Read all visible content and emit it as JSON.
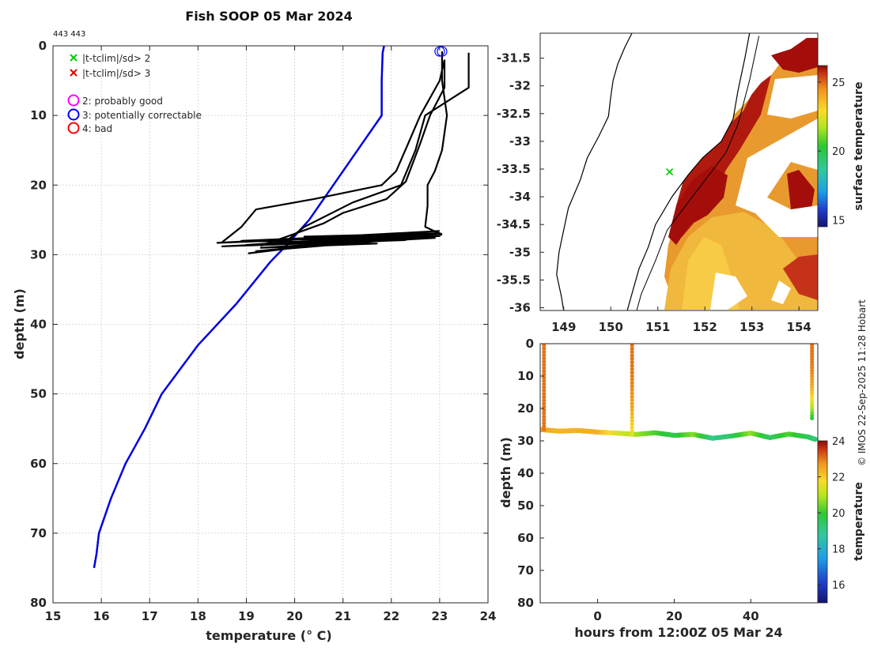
{
  "figure": {
    "title": "Fish SOOP 05 Mar 2024",
    "id_text": "443 443",
    "credit": "© IMOS 22-Sep-2025 11:28 Hobart"
  },
  "chart_data": [
    {
      "name": "profile",
      "type": "line",
      "xlabel": "temperature (° C)",
      "ylabel": "depth (m)",
      "xlim": [
        15,
        24
      ],
      "ylim": [
        0,
        80
      ],
      "y_reversed": true,
      "grid": true,
      "xticks": [
        15,
        16,
        17,
        18,
        19,
        20,
        21,
        22,
        23,
        24
      ],
      "yticks": [
        0,
        10,
        20,
        30,
        40,
        50,
        60,
        70,
        80
      ],
      "legend": {
        "position": "top-left",
        "entries": [
          {
            "label": "|t-tclim|/sd> 2",
            "marker": "x",
            "color": "#00cc00"
          },
          {
            "label": "|t-tclim|/sd> 3",
            "marker": "x",
            "color": "#e00000"
          },
          {
            "label": "2: probably good",
            "marker": "circle",
            "color": "#ff00ff"
          },
          {
            "label": "3: potentially correctable",
            "marker": "circle",
            "color": "#0000ff"
          },
          {
            "label": "4: bad",
            "marker": "circle",
            "color": "#ff0000"
          }
        ]
      },
      "series": [
        {
          "name": "climatology",
          "color": "#0000e0",
          "points": [
            [
              21.85,
              0
            ],
            [
              21.82,
              1
            ],
            [
              21.8,
              5
            ],
            [
              21.8,
              10
            ],
            [
              21.3,
              15
            ],
            [
              20.8,
              20
            ],
            [
              20.3,
              25
            ],
            [
              19.85,
              28.5
            ],
            [
              19.5,
              31
            ],
            [
              18.8,
              37
            ],
            [
              18.0,
              43
            ],
            [
              17.25,
              50
            ],
            [
              16.9,
              55
            ],
            [
              16.5,
              60
            ],
            [
              16.2,
              65
            ],
            [
              15.95,
              70
            ],
            [
              15.9,
              73
            ],
            [
              15.85,
              75
            ]
          ]
        },
        {
          "name": "profile-1",
          "color": "#000000",
          "points": [
            [
              23.05,
              0.8
            ],
            [
              23.05,
              5
            ],
            [
              23.15,
              10
            ],
            [
              23.05,
              15
            ],
            [
              22.9,
              18
            ],
            [
              22.75,
              20
            ],
            [
              22.75,
              23
            ],
            [
              22.7,
              26
            ],
            [
              22.95,
              26.8
            ],
            [
              23.05,
              27.2
            ]
          ]
        },
        {
          "name": "profile-2",
          "color": "#000000",
          "points": [
            [
              23.6,
              1
            ],
            [
              23.6,
              6
            ],
            [
              22.7,
              10
            ],
            [
              22.5,
              15
            ],
            [
              22.2,
              20
            ],
            [
              21.2,
              22.5
            ],
            [
              20.2,
              26
            ],
            [
              19.8,
              28.2
            ]
          ]
        },
        {
          "name": "profile-3",
          "color": "#000000",
          "points": [
            [
              23.1,
              2
            ],
            [
              23.1,
              6
            ],
            [
              22.8,
              10
            ],
            [
              22.6,
              14
            ],
            [
              22.3,
              19.5
            ],
            [
              21.9,
              22
            ],
            [
              21.0,
              24
            ],
            [
              20.6,
              25.5
            ],
            [
              19.8,
              27.5
            ],
            [
              19.3,
              28.7
            ]
          ]
        },
        {
          "name": "profile-4",
          "color": "#000000",
          "points": [
            [
              23.1,
              2
            ],
            [
              23.0,
              5
            ],
            [
              22.6,
              10
            ],
            [
              22.35,
              14
            ],
            [
              22.1,
              18
            ],
            [
              21.8,
              20
            ],
            [
              20.4,
              22
            ],
            [
              19.2,
              23.5
            ],
            [
              18.9,
              26
            ],
            [
              18.5,
              28.2
            ]
          ]
        },
        {
          "name": "bottom-scribble",
          "color": "#000000",
          "points": [
            [
              23.0,
              26.6
            ],
            [
              18.4,
              28.3
            ],
            [
              22.8,
              27.1
            ],
            [
              19.2,
              29.5
            ],
            [
              23.0,
              27.3
            ],
            [
              18.5,
              28.8
            ],
            [
              22.3,
              27.9
            ],
            [
              19.0,
              28.6
            ],
            [
              23.0,
              26.9
            ],
            [
              20.2,
              27.4
            ],
            [
              21.3,
              27.8
            ],
            [
              19.05,
              29.8
            ],
            [
              22.4,
              27.0
            ],
            [
              18.9,
              28.0
            ],
            [
              21.7,
              28.4
            ],
            [
              19.3,
              29.0
            ],
            [
              22.9,
              27.6
            ],
            [
              20.5,
              28.2
            ],
            [
              23.05,
              27.0
            ]
          ]
        }
      ],
      "markers": [
        {
          "type": "circle",
          "color": "#0000ff",
          "x": 23.0,
          "y": 0.8
        },
        {
          "type": "circle",
          "color": "#0000ff",
          "x": 23.05,
          "y": 0.8
        }
      ]
    },
    {
      "name": "sst-map",
      "type": "heatmap",
      "xlabel": "",
      "ylabel": "",
      "xlim": [
        148.5,
        154.4
      ],
      "ylim": [
        -36.05,
        -31.05
      ],
      "xticks": [
        149,
        150,
        151,
        152,
        153,
        154
      ],
      "yticks": [
        -31.5,
        -32,
        -32.5,
        -33,
        -33.5,
        -34,
        -34.5,
        -35,
        -35.5,
        -36
      ],
      "xticklabels": [
        "149",
        "150",
        "151",
        "152",
        "153",
        "154"
      ],
      "yticklabels": [
        "-31.5",
        "-32",
        "-32.5",
        "-33",
        "-33.5",
        "-34",
        "-34.5",
        "-35",
        "-35.5",
        "-36"
      ],
      "colorbar": {
        "label": "surface temperature",
        "range": [
          14.5,
          26.2
        ],
        "ticks": [
          15,
          20,
          25
        ]
      },
      "coastline": [
        [
          150.45,
          -31.05
        ],
        [
          150.3,
          -31.3
        ],
        [
          150.15,
          -31.6
        ],
        [
          150.05,
          -31.9
        ],
        [
          150.0,
          -32.2
        ],
        [
          149.95,
          -32.55
        ],
        [
          149.75,
          -32.9
        ],
        [
          149.5,
          -33.3
        ],
        [
          149.35,
          -33.7
        ],
        [
          149.1,
          -34.2
        ],
        [
          149.0,
          -34.6
        ],
        [
          148.9,
          -35.0
        ],
        [
          148.85,
          -35.4
        ],
        [
          148.95,
          -35.8
        ],
        [
          149.0,
          -36.05
        ]
      ],
      "inner_coastline": [
        [
          152.95,
          -31.05
        ],
        [
          152.85,
          -31.5
        ],
        [
          152.7,
          -32.1
        ],
        [
          152.6,
          -32.6
        ],
        [
          152.35,
          -33.0
        ],
        [
          151.95,
          -33.3
        ],
        [
          151.65,
          -33.6
        ],
        [
          151.3,
          -34.0
        ],
        [
          150.95,
          -34.5
        ],
        [
          150.8,
          -34.9
        ],
        [
          150.6,
          -35.3
        ],
        [
          150.45,
          -35.75
        ],
        [
          150.35,
          -36.05
        ]
      ],
      "ship_track": [
        [
          153.15,
          -31.1
        ],
        [
          152.95,
          -31.9
        ],
        [
          152.7,
          -32.7
        ],
        [
          152.45,
          -33.2
        ],
        [
          152.05,
          -33.65
        ],
        [
          151.6,
          -34.15
        ],
        [
          151.2,
          -34.6
        ],
        [
          150.95,
          -35.15
        ],
        [
          150.65,
          -35.75
        ],
        [
          150.55,
          -36.05
        ]
      ],
      "marker": {
        "type": "cross",
        "color": "#00cc00",
        "x": 151.25,
        "y": -33.55
      }
    },
    {
      "name": "section",
      "type": "scatter",
      "xlabel": "hours from 12:00Z 05 Mar 24",
      "ylabel": "depth (m)",
      "xlim": [
        -15,
        57.5
      ],
      "ylim": [
        0,
        80
      ],
      "y_reversed": true,
      "xticks": [
        0,
        20,
        40
      ],
      "yticks": [
        0,
        10,
        20,
        30,
        40,
        50,
        60,
        70,
        80
      ],
      "colorbar": {
        "label": "temperature",
        "range": [
          15,
          24
        ],
        "ticks": [
          16,
          18,
          20,
          22,
          24
        ]
      },
      "casts": [
        {
          "x": -14,
          "depth_top": 0.5,
          "depth_bottom": 26.5,
          "t_top": 23.0,
          "t_bottom": 23.0
        },
        {
          "x": 9,
          "depth_top": 0.5,
          "depth_bottom": 28.0,
          "t_top": 23.0,
          "t_bottom": 21.5
        },
        {
          "x": 56,
          "depth_top": 0.5,
          "depth_bottom": 23.0,
          "t_top": 23.0,
          "t_bottom": 19.8
        }
      ],
      "bottom_track": {
        "x": [
          -15,
          -10,
          -5,
          0,
          5,
          10,
          15,
          20,
          25,
          30,
          35,
          40,
          45,
          50,
          55,
          57
        ],
        "depth": [
          26.5,
          27.0,
          26.8,
          27.3,
          27.6,
          28.0,
          27.5,
          28.3,
          28.0,
          29.2,
          28.5,
          27.6,
          29.0,
          27.9,
          28.8,
          29.6
        ],
        "temperature": [
          22.5,
          22.3,
          22.4,
          22.4,
          21.4,
          20.8,
          20.2,
          19.6,
          20.6,
          19.0,
          19.4,
          20.7,
          19.4,
          20.2,
          19.5,
          19.2
        ]
      }
    }
  ]
}
